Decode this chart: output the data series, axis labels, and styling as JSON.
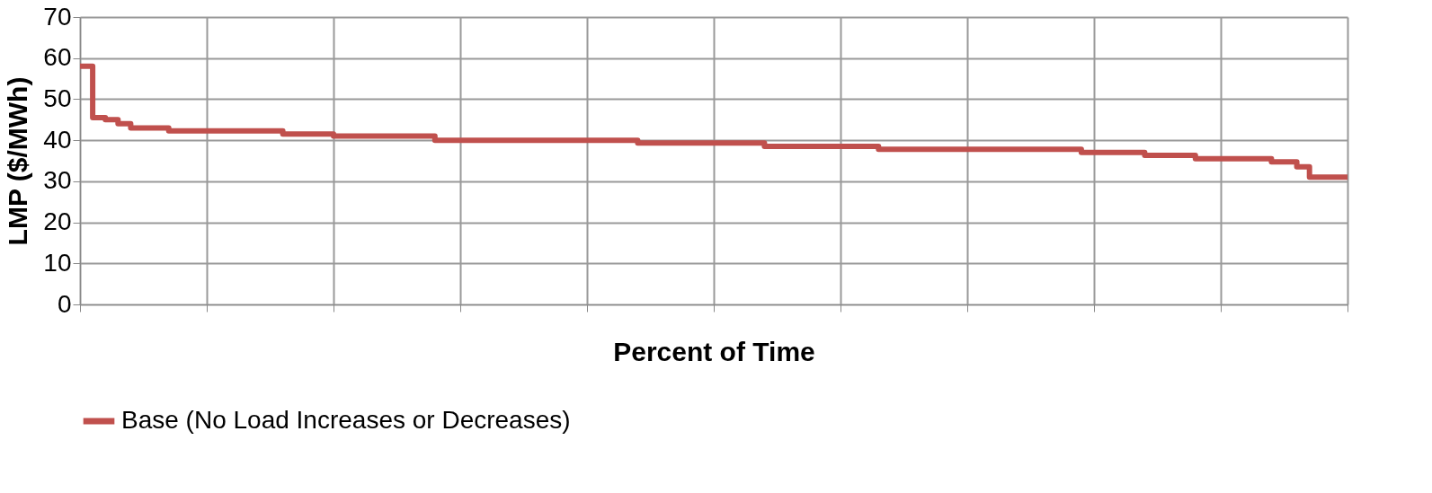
{
  "chart_data": {
    "type": "step",
    "xlabel": "Percent of Time",
    "ylabel": "LMP ($/MWh)",
    "categories": [
      null,
      null,
      null,
      null,
      null,
      null,
      null,
      null,
      null,
      null,
      null,
      null,
      null,
      null,
      null,
      null,
      null,
      null,
      null,
      null,
      null,
      null,
      null,
      null,
      null,
      null,
      null,
      null,
      null,
      null,
      null,
      null,
      null,
      null,
      null,
      null,
      null,
      null,
      null,
      null,
      null,
      null,
      null,
      null,
      null,
      null,
      null,
      null,
      null,
      null,
      null,
      null,
      null,
      null,
      null,
      null,
      null,
      null,
      null,
      null,
      null,
      null,
      null,
      null,
      null,
      null,
      null,
      null,
      null,
      null,
      null,
      null,
      null,
      null,
      null,
      null,
      null,
      null,
      null,
      null,
      null,
      null,
      null,
      null,
      null,
      null,
      null,
      null,
      null,
      null,
      null,
      null,
      null,
      null,
      null,
      null,
      null,
      null,
      null,
      null,
      null
    ],
    "series": [
      {
        "name": "Base (No Load Increases or Decreases)",
        "color": "#c0504d",
        "values": [
          58,
          45.5,
          45,
          44,
          43,
          43,
          43,
          42.3,
          42.3,
          42.3,
          42.3,
          42.3,
          42.3,
          42.3,
          42.3,
          42.3,
          41.5,
          41.5,
          41.5,
          41.5,
          41,
          41,
          41,
          41,
          41,
          41,
          41,
          41,
          40,
          40,
          40,
          40,
          40,
          40,
          40,
          40,
          40,
          40,
          40,
          40,
          40,
          40,
          40,
          40,
          39.3,
          39.3,
          39.3,
          39.3,
          39.3,
          39.3,
          39.3,
          39.3,
          39.3,
          39.3,
          38.5,
          38.5,
          38.5,
          38.5,
          38.5,
          38.5,
          38.5,
          38.5,
          38.5,
          37.8,
          37.8,
          37.8,
          37.8,
          37.8,
          37.8,
          37.8,
          37.8,
          37.8,
          37.8,
          37.8,
          37.8,
          37.8,
          37.8,
          37.8,
          37.8,
          37,
          37,
          37,
          37,
          37,
          36.3,
          36.3,
          36.3,
          36.3,
          35.5,
          35.5,
          35.5,
          35.5,
          35.5,
          35.5,
          34.7,
          34.7,
          33.5,
          31,
          31,
          31,
          31
        ]
      }
    ],
    "ylim": [
      0,
      70
    ],
    "yticks": [
      0,
      10,
      20,
      30,
      40,
      50,
      60,
      70
    ],
    "grid": true,
    "legend": "bottom",
    "tick_labels": "y"
  }
}
